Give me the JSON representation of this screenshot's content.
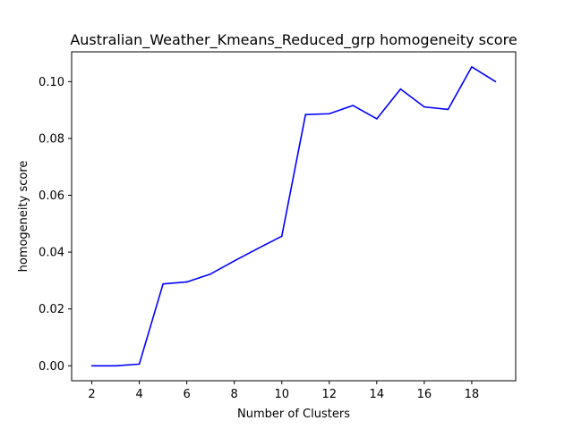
{
  "chart_data": {
    "type": "line",
    "title": "Australian_Weather_Kmeans_Reduced_grp homogeneity score",
    "xlabel": "Number of Clusters",
    "ylabel": "homogeneity score",
    "x": [
      2,
      3,
      4,
      5,
      6,
      7,
      8,
      9,
      10,
      11,
      12,
      13,
      14,
      15,
      16,
      17,
      18,
      19
    ],
    "series": [
      {
        "values": [
          0.0,
          0.0,
          0.0006,
          0.0288,
          0.0295,
          0.0323,
          0.0369,
          0.0413,
          0.0456,
          0.0884,
          0.0887,
          0.0916,
          0.0869,
          0.0974,
          0.0911,
          0.0902,
          0.1052,
          0.1
        ],
        "color": "#0000ff"
      }
    ],
    "xlim": [
      1.15,
      19.85
    ],
    "ylim": [
      -0.00526,
      0.11048
    ],
    "xticks": [
      2,
      4,
      6,
      8,
      10,
      12,
      14,
      16,
      18
    ],
    "xtick_labels": [
      "2",
      "4",
      "6",
      "8",
      "10",
      "12",
      "14",
      "16",
      "18"
    ],
    "yticks": [
      0.0,
      0.02,
      0.04,
      0.06,
      0.08,
      0.1
    ],
    "ytick_labels": [
      "0.00",
      "0.02",
      "0.04",
      "0.06",
      "0.08",
      "0.10"
    ],
    "grid": false,
    "legend": "none"
  }
}
